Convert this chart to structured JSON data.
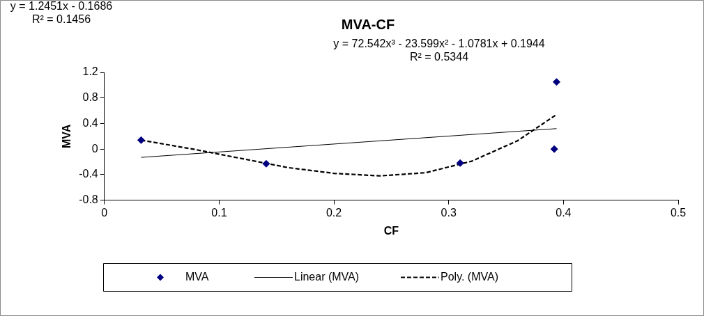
{
  "chart_data": {
    "type": "scatter",
    "title": "MVA-CF",
    "xlabel": "CF",
    "ylabel": "MVA",
    "xlim": [
      0,
      0.5
    ],
    "xticks": [
      0,
      0.1,
      0.2,
      0.3,
      0.4,
      0.5
    ],
    "ylim": [
      -0.8,
      1.2
    ],
    "yticks": [
      -0.8,
      -0.4,
      0,
      0.4,
      0.8,
      1.2
    ],
    "grid": false,
    "legend": "bottom",
    "annotations": [
      "y = 1.2451x - 0.1686\nR² = 0.1456",
      "y = 72.542x³ - 23.599x² - 1.0781x + 0.1944\nR² = 0.5344"
    ],
    "series": [
      {
        "name": "MVA",
        "type": "scatter",
        "color": "#000080",
        "marker": "diamond",
        "x": [
          0.032,
          0.141,
          0.31,
          0.392,
          0.394
        ],
        "values": [
          0.14,
          -0.23,
          -0.22,
          0.0,
          1.05
        ]
      },
      {
        "name": "Linear (MVA)",
        "type": "line",
        "color": "#000000",
        "line_style": "solid",
        "marker": "none",
        "x": [
          0.032,
          0.394
        ],
        "values": [
          -0.13,
          0.32
        ]
      },
      {
        "name": "Poly. (MVA)",
        "type": "line",
        "color": "#000000",
        "line_style": "dashed",
        "marker": "none",
        "x": [
          0.032,
          0.08,
          0.12,
          0.16,
          0.2,
          0.24,
          0.28,
          0.32,
          0.36,
          0.394
        ],
        "values": [
          0.14,
          -0.01,
          -0.15,
          -0.29,
          -0.38,
          -0.42,
          -0.37,
          -0.19,
          0.13,
          0.54
        ]
      }
    ]
  }
}
